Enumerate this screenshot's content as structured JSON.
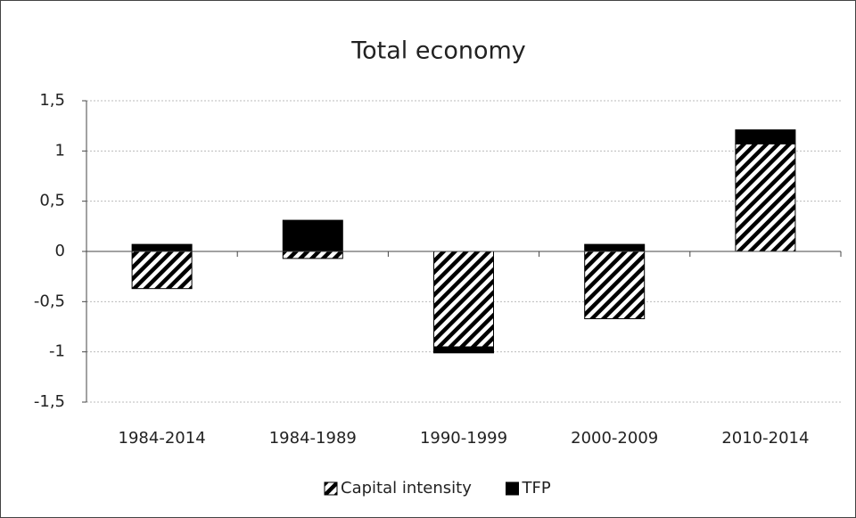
{
  "chart_data": {
    "type": "bar",
    "stacked": true,
    "title": "Total economy",
    "categories": [
      "1984-2014",
      "1984-1989",
      "1990-1999",
      "2000-2009",
      "2010-2014"
    ],
    "series": [
      {
        "name": "Capital intensity",
        "color": "#000000",
        "pattern": "hatch",
        "values": [
          -0.37,
          -0.07,
          -0.95,
          -0.67,
          1.07
        ]
      },
      {
        "name": "TFP",
        "color": "#000000",
        "pattern": "solid",
        "values": [
          0.07,
          0.31,
          -0.06,
          0.07,
          0.14
        ]
      }
    ],
    "ylim": [
      -1.5,
      1.5
    ],
    "yticks": [
      {
        "value": -1.5,
        "label": "-1,5"
      },
      -1,
      {
        "value": -0.5,
        "label": "-0,5"
      },
      0,
      {
        "value": 0.5,
        "label": "0,5"
      },
      1,
      {
        "value": 1.5,
        "label": "1,5"
      }
    ],
    "grid": true,
    "legend": "bottom"
  }
}
